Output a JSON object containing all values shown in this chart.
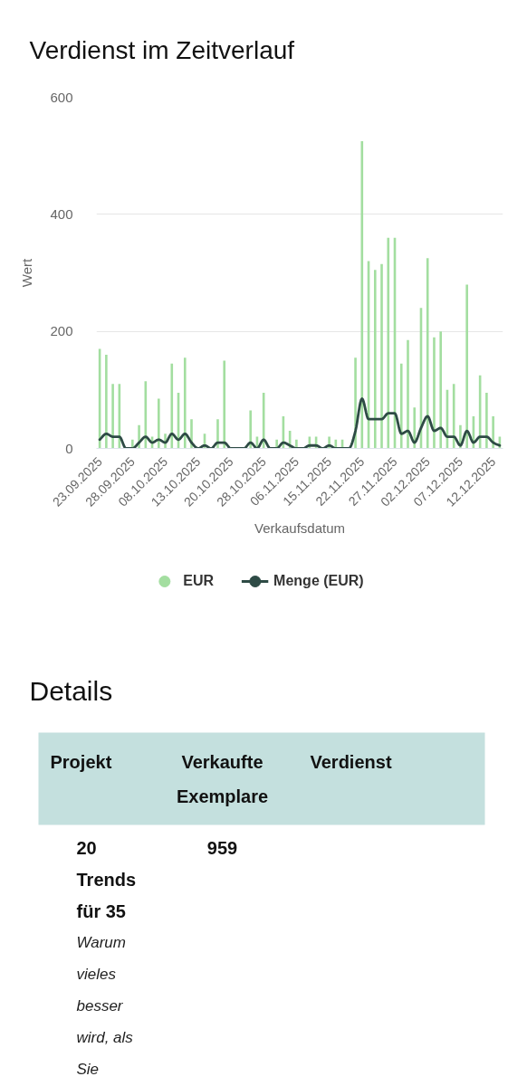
{
  "chart_data": [
    {
      "type": "bar",
      "title": "Verdienst im Zeitverlauf",
      "xlabel": "Verkaufsdatum",
      "ylabel": "Wert",
      "categories": [
        "23.09.2025",
        null,
        null,
        null,
        null,
        "28.09.2025",
        null,
        null,
        null,
        null,
        "08.10.2025",
        null,
        null,
        null,
        null,
        "13.10.2025",
        null,
        null,
        null,
        null,
        "20.10.2025",
        null,
        null,
        null,
        null,
        "28.10.2025",
        null,
        null,
        null,
        null,
        "06.11.2025",
        null,
        null,
        null,
        null,
        "15.11.2025",
        null,
        null,
        null,
        null,
        "22.11.2025",
        null,
        null,
        null,
        null,
        "27.11.2025",
        null,
        null,
        null,
        null,
        "02.12.2025",
        null,
        null,
        null,
        null,
        "07.12.2025",
        null,
        null,
        null,
        null,
        "12.12.2025",
        null
      ],
      "series": [
        {
          "name": "EUR",
          "type": "bar",
          "color": "#a3dea0",
          "values": [
            170,
            160,
            110,
            110,
            0,
            15,
            40,
            115,
            20,
            85,
            25,
            145,
            95,
            155,
            50,
            0,
            25,
            0,
            50,
            150,
            0,
            0,
            0,
            65,
            20,
            95,
            0,
            15,
            55,
            30,
            15,
            0,
            20,
            20,
            0,
            20,
            15,
            15,
            0,
            155,
            525,
            320,
            305,
            315,
            360,
            360,
            145,
            185,
            70,
            240,
            325,
            190,
            200,
            100,
            110,
            40,
            280,
            55,
            125,
            95,
            55,
            20
          ]
        },
        {
          "name": "Menge (EUR)",
          "type": "line",
          "color": "#2e4b45",
          "values": [
            15,
            25,
            20,
            20,
            0,
            0,
            10,
            20,
            10,
            15,
            10,
            25,
            15,
            25,
            10,
            0,
            5,
            0,
            10,
            10,
            0,
            0,
            0,
            10,
            0,
            15,
            0,
            0,
            10,
            5,
            0,
            0,
            5,
            5,
            0,
            5,
            0,
            0,
            0,
            30,
            85,
            50,
            50,
            50,
            60,
            60,
            25,
            30,
            10,
            35,
            55,
            30,
            35,
            20,
            20,
            5,
            30,
            10,
            20,
            20,
            10,
            5
          ]
        }
      ],
      "ylim": [
        0,
        600
      ],
      "yticks": [
        0,
        200,
        400,
        600
      ],
      "grid": "y",
      "legend": "bottom"
    },
    {
      "type": "other",
      "title": "Details",
      "categories": [
        "Projekt",
        "Verkaufte Exemplare",
        "Verdienst"
      ],
      "values": [
        null,
        959,
        null
      ],
      "data_labels": true,
      "annotations": [
        "20 Trends für 35",
        "Warum vieles besser wird, als Sie"
      ]
    }
  ]
}
